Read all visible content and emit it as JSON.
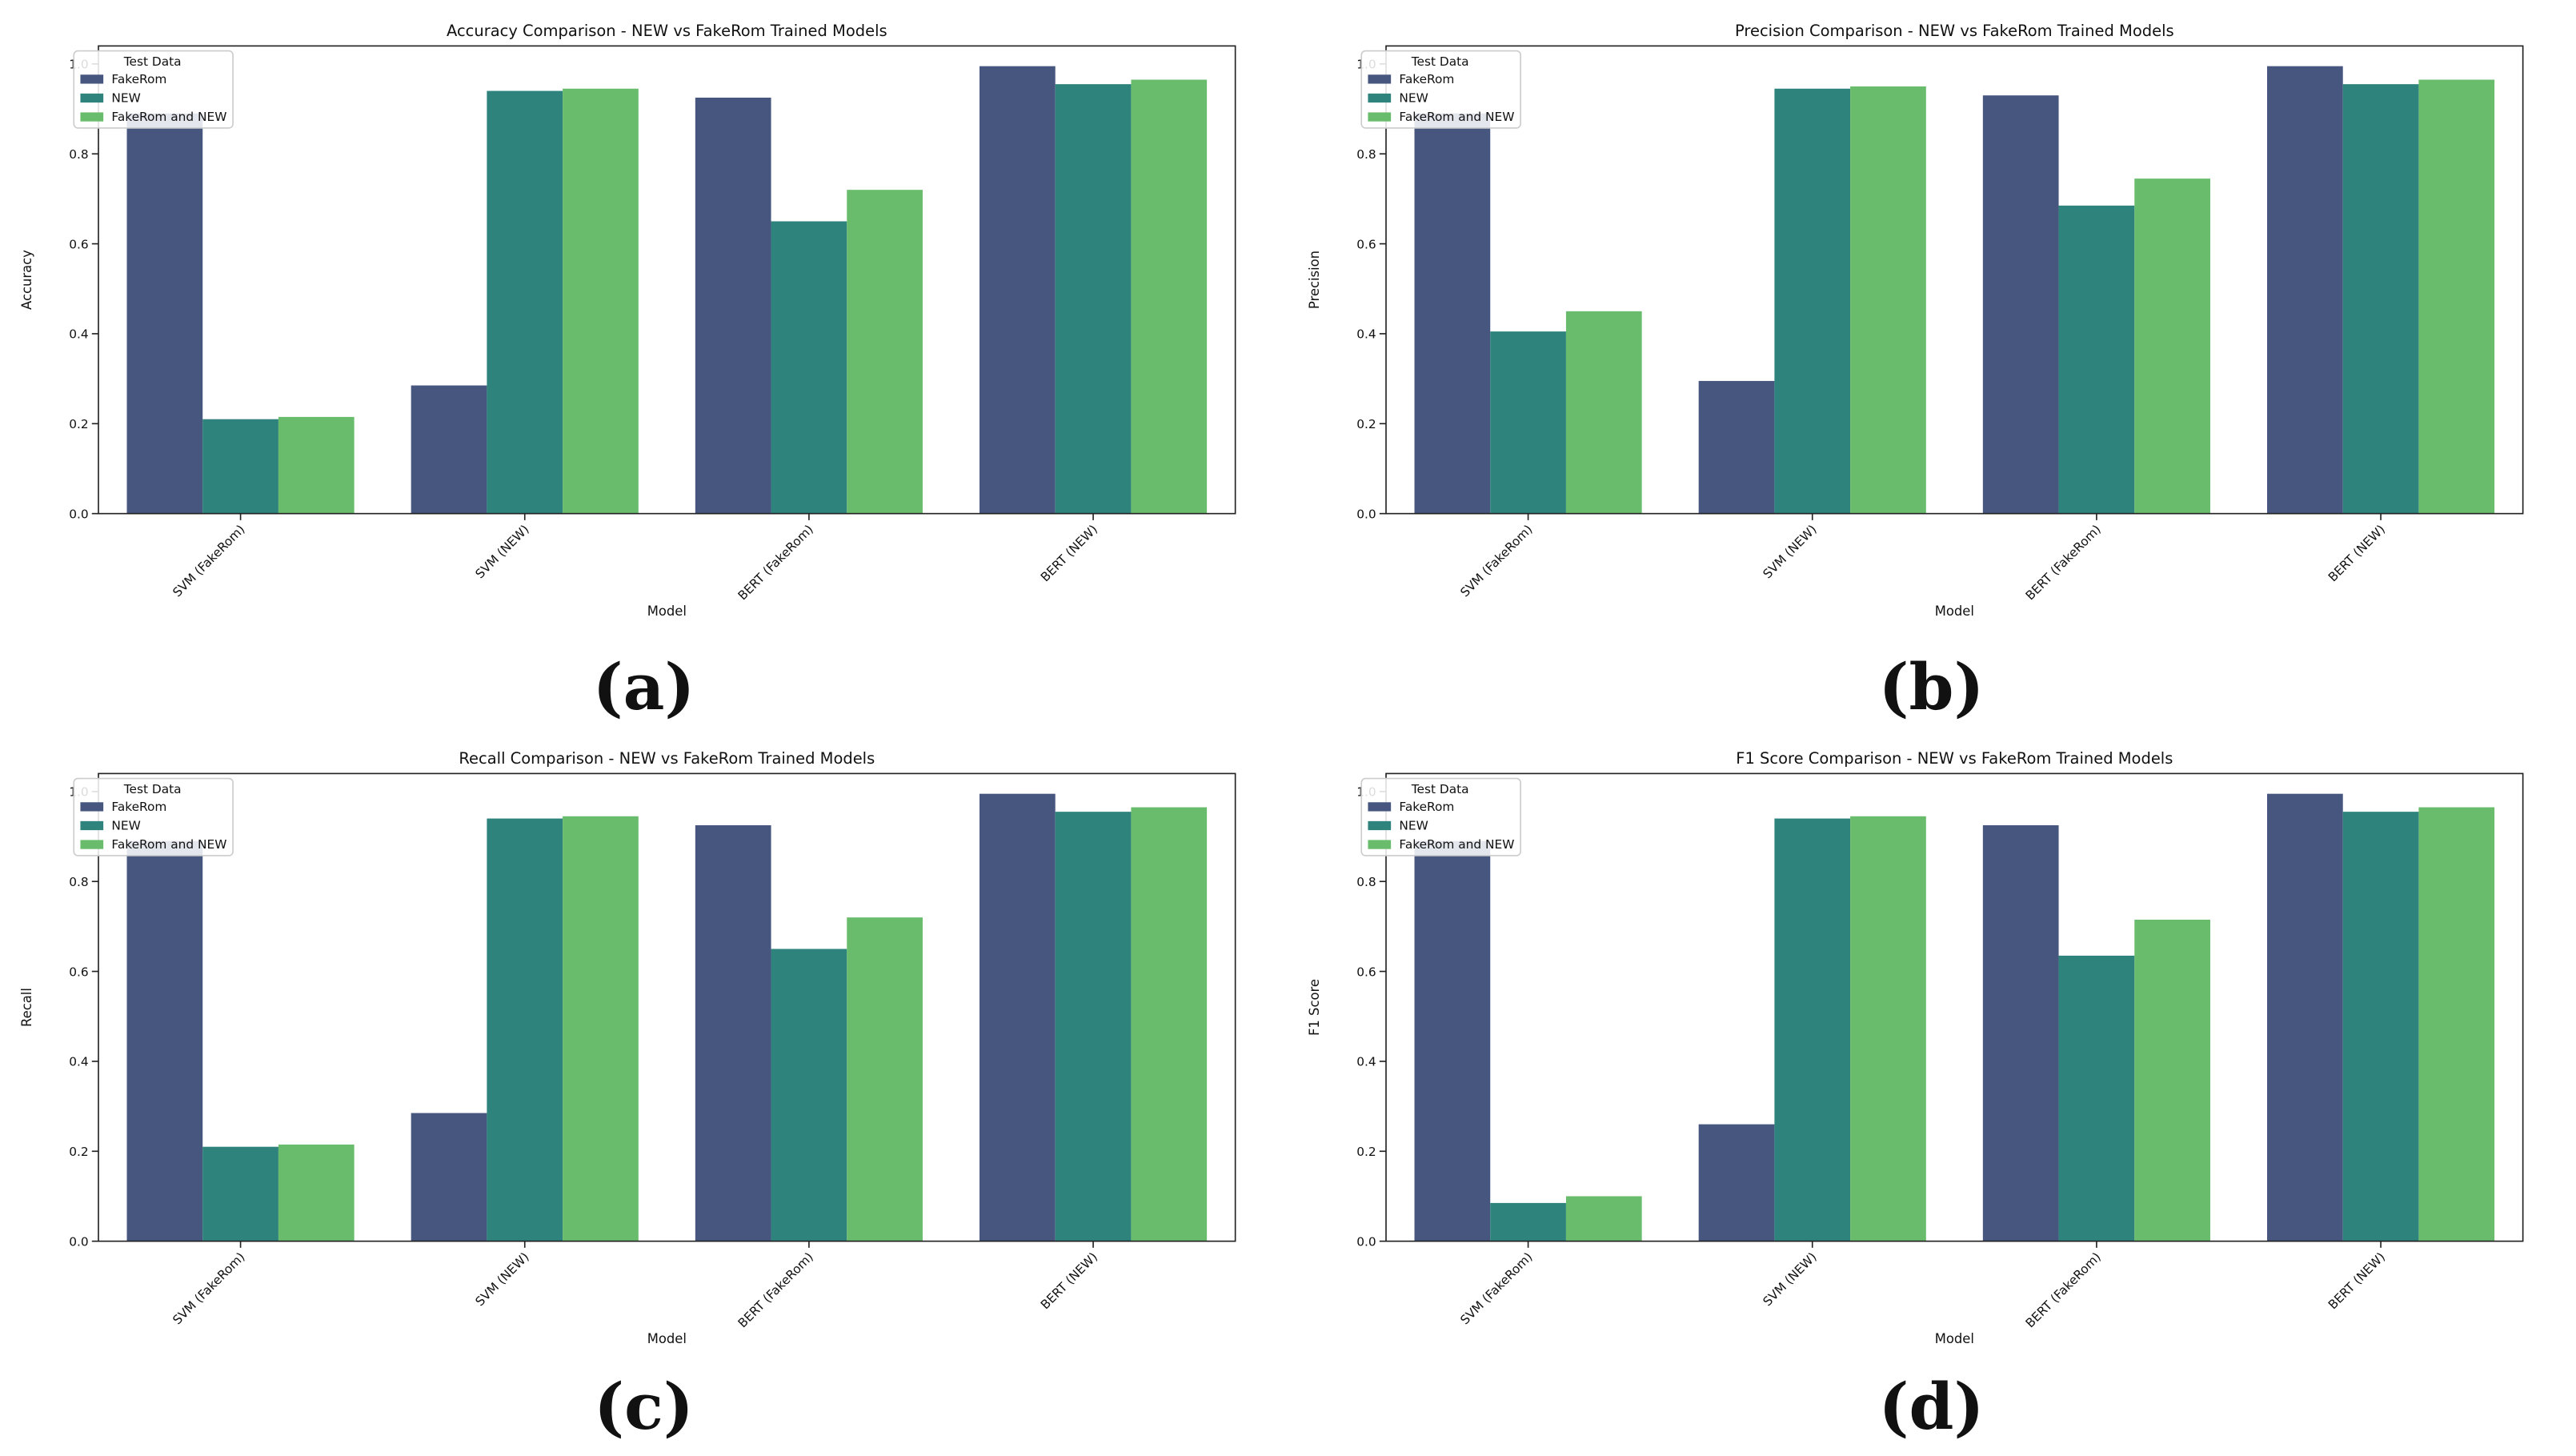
{
  "colors": {
    "FakeRom": "#46567f",
    "NEW": "#2e837c",
    "FakeRom and NEW": "#6abc6d",
    "axis": "#222222"
  },
  "chart_data": [
    {
      "panel_label": "(a)",
      "type": "bar",
      "title": "Accuracy Comparison - NEW vs FakeRom Trained Models",
      "xlabel": "Model",
      "ylabel": "Accuracy",
      "ylim": [
        0,
        1.04
      ],
      "yticks": [
        "0.0",
        "0.2",
        "0.4",
        "0.6",
        "0.8",
        "1.0"
      ],
      "categories": [
        "SVM (FakeRom)",
        "SVM (NEW)",
        "BERT (FakeRom)",
        "BERT (NEW)"
      ],
      "legend_title": "Test Data",
      "legend_position": "top-left",
      "series": [
        {
          "name": "FakeRom",
          "values": [
            0.89,
            0.285,
            0.925,
            0.995
          ]
        },
        {
          "name": "NEW",
          "values": [
            0.21,
            0.94,
            0.65,
            0.955
          ]
        },
        {
          "name": "FakeRom and NEW",
          "values": [
            0.215,
            0.945,
            0.72,
            0.965
          ]
        }
      ]
    },
    {
      "panel_label": "(b)",
      "type": "bar",
      "title": "Precision Comparison - NEW vs FakeRom Trained Models",
      "xlabel": "Model",
      "ylabel": "Precision",
      "ylim": [
        0,
        1.04
      ],
      "yticks": [
        "0.0",
        "0.2",
        "0.4",
        "0.6",
        "0.8",
        "1.0"
      ],
      "categories": [
        "SVM (FakeRom)",
        "SVM (NEW)",
        "BERT (FakeRom)",
        "BERT (NEW)"
      ],
      "legend_title": "Test Data",
      "legend_position": "top-left",
      "series": [
        {
          "name": "FakeRom",
          "values": [
            0.89,
            0.295,
            0.93,
            0.995
          ]
        },
        {
          "name": "NEW",
          "values": [
            0.405,
            0.945,
            0.685,
            0.955
          ]
        },
        {
          "name": "FakeRom and NEW",
          "values": [
            0.45,
            0.95,
            0.745,
            0.965
          ]
        }
      ]
    },
    {
      "panel_label": "(c)",
      "type": "bar",
      "title": "Recall Comparison - NEW vs FakeRom Trained Models",
      "xlabel": "Model",
      "ylabel": "Recall",
      "ylim": [
        0,
        1.04
      ],
      "yticks": [
        "0.0",
        "0.2",
        "0.4",
        "0.6",
        "0.8",
        "1.0"
      ],
      "categories": [
        "SVM (FakeRom)",
        "SVM (NEW)",
        "BERT (FakeRom)",
        "BERT (NEW)"
      ],
      "legend_title": "Test Data",
      "legend_position": "top-left",
      "series": [
        {
          "name": "FakeRom",
          "values": [
            0.89,
            0.285,
            0.925,
            0.995
          ]
        },
        {
          "name": "NEW",
          "values": [
            0.21,
            0.94,
            0.65,
            0.955
          ]
        },
        {
          "name": "FakeRom and NEW",
          "values": [
            0.215,
            0.945,
            0.72,
            0.965
          ]
        }
      ]
    },
    {
      "panel_label": "(d)",
      "type": "bar",
      "title": "F1 Score Comparison - NEW vs FakeRom Trained Models",
      "xlabel": "Model",
      "ylabel": "F1 Score",
      "ylim": [
        0,
        1.04
      ],
      "yticks": [
        "0.0",
        "0.2",
        "0.4",
        "0.6",
        "0.8",
        "1.0"
      ],
      "categories": [
        "SVM (FakeRom)",
        "SVM (NEW)",
        "BERT (FakeRom)",
        "BERT (NEW)"
      ],
      "legend_title": "Test Data",
      "legend_position": "top-left",
      "series": [
        {
          "name": "FakeRom",
          "values": [
            0.89,
            0.26,
            0.925,
            0.995
          ]
        },
        {
          "name": "NEW",
          "values": [
            0.085,
            0.94,
            0.635,
            0.955
          ]
        },
        {
          "name": "FakeRom and NEW",
          "values": [
            0.1,
            0.945,
            0.715,
            0.965
          ]
        }
      ]
    }
  ]
}
